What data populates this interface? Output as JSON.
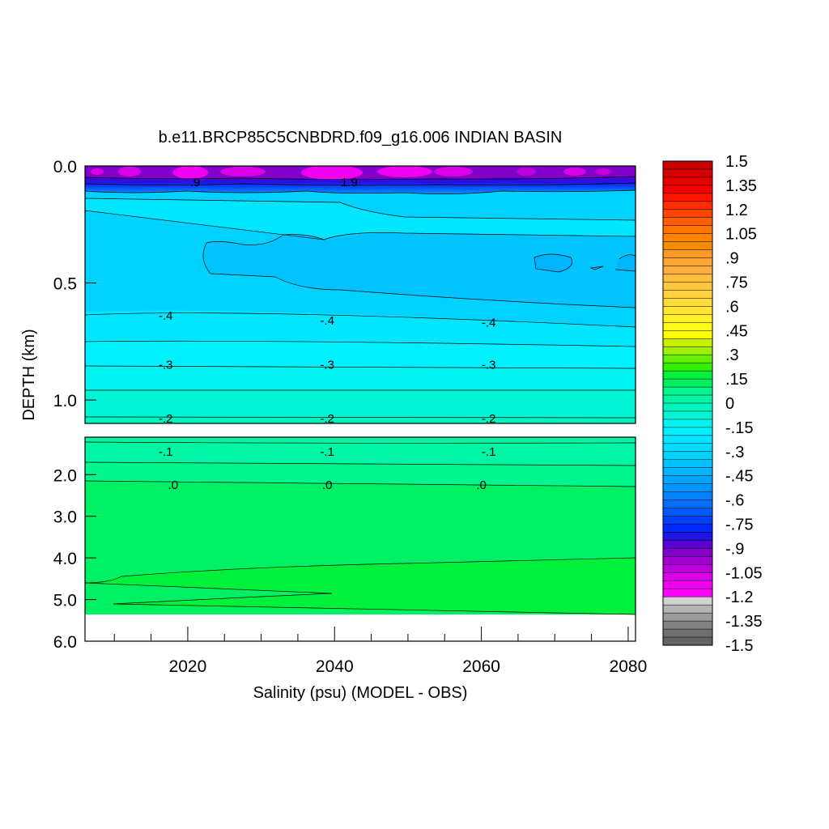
{
  "chart_data": {
    "type": "heatmap",
    "title": "b.e11.BRCP85C5CNBDRD.f09_g16.006 INDIAN BASIN",
    "xlabel": "Salinity (psu) (MODEL - OBS)",
    "ylabel": "DEPTH (km)",
    "x_range": [
      2006,
      2081
    ],
    "x_ticks": [
      "2020",
      "2040",
      "2060",
      "2080"
    ],
    "upper_panel": {
      "y_range": [
        0.0,
        1.1
      ],
      "y_ticks": [
        "0.0",
        "0.5",
        "1.0"
      ]
    },
    "lower_panel": {
      "y_range": [
        1.1,
        6.0
      ],
      "y_ticks": [
        "2.0",
        "3.0",
        "4.0",
        "5.0",
        "6.0"
      ]
    },
    "contour_labels": [
      {
        "text": ".9",
        "year": 2021,
        "depth": 0.07
      },
      {
        "text": "1.9",
        "year": 2042,
        "depth": 0.07
      },
      {
        "text": "-.4",
        "year": 2017,
        "depth": 0.64
      },
      {
        "text": "-.4",
        "year": 2039,
        "depth": 0.66
      },
      {
        "text": "-.4",
        "year": 2061,
        "depth": 0.67
      },
      {
        "text": "-.3",
        "year": 2017,
        "depth": 0.85
      },
      {
        "text": "-.3",
        "year": 2039,
        "depth": 0.85
      },
      {
        "text": "-.3",
        "year": 2061,
        "depth": 0.85
      },
      {
        "text": "-.2",
        "year": 2017,
        "depth": 1.08
      },
      {
        "text": "-.2",
        "year": 2039,
        "depth": 1.08
      },
      {
        "text": "-.2",
        "year": 2061,
        "depth": 1.08
      },
      {
        "text": "-.1",
        "year": 2017,
        "depth": 1.45
      },
      {
        "text": "-.1",
        "year": 2039,
        "depth": 1.45
      },
      {
        "text": "-.1",
        "year": 2061,
        "depth": 1.45
      },
      {
        "text": ".0",
        "year": 2018,
        "depth": 2.25
      },
      {
        "text": ".0",
        "year": 2039,
        "depth": 2.25
      },
      {
        "text": ".0",
        "year": 2060,
        "depth": 2.25
      }
    ],
    "colorbar": {
      "labels": [
        "1.5",
        "1.35",
        "1.2",
        "1.05",
        ".9",
        ".75",
        ".6",
        ".45",
        ".3",
        ".15",
        "0",
        "-.15",
        "-.3",
        "-.45",
        "-.6",
        "-.75",
        "-.9",
        "-1.05",
        "-1.2",
        "-1.35",
        "-1.5"
      ],
      "colors": [
        "#c80000",
        "#d70000",
        "#e60000",
        "#f50000",
        "#ff1400",
        "#ff2d00",
        "#ff4600",
        "#ff5f00",
        "#ff7300",
        "#ff8200",
        "#f58c00",
        "#fa9b28",
        "#ffa532",
        "#ffaf3c",
        "#ffbe3c",
        "#ffc83c",
        "#ffd23c",
        "#ffdc3c",
        "#ffe632",
        "#fff028",
        "#fffa14",
        "#ffff00",
        "#c8f000",
        "#a0f000",
        "#64f000",
        "#32f000",
        "#00f03c",
        "#00f064",
        "#00f58c",
        "#00f5a5",
        "#00f5be",
        "#00f5d7",
        "#00f5f0",
        "#00f0ff",
        "#00e6ff",
        "#00dcff",
        "#00d2ff",
        "#00c3ff",
        "#00b4ff",
        "#00a5ff",
        "#0096ff",
        "#0082ff",
        "#006eff",
        "#005aff",
        "#0040ff",
        "#0028ff",
        "#1e14e6",
        "#5a00d2",
        "#8200c8",
        "#a000d2",
        "#be00dc",
        "#dc00e6",
        "#f000f0",
        "#ff00ff",
        "#d2d2d2",
        "#b4b4b4",
        "#9b9b9b",
        "#828282",
        "#6e6e6e",
        "#646464"
      ]
    }
  }
}
